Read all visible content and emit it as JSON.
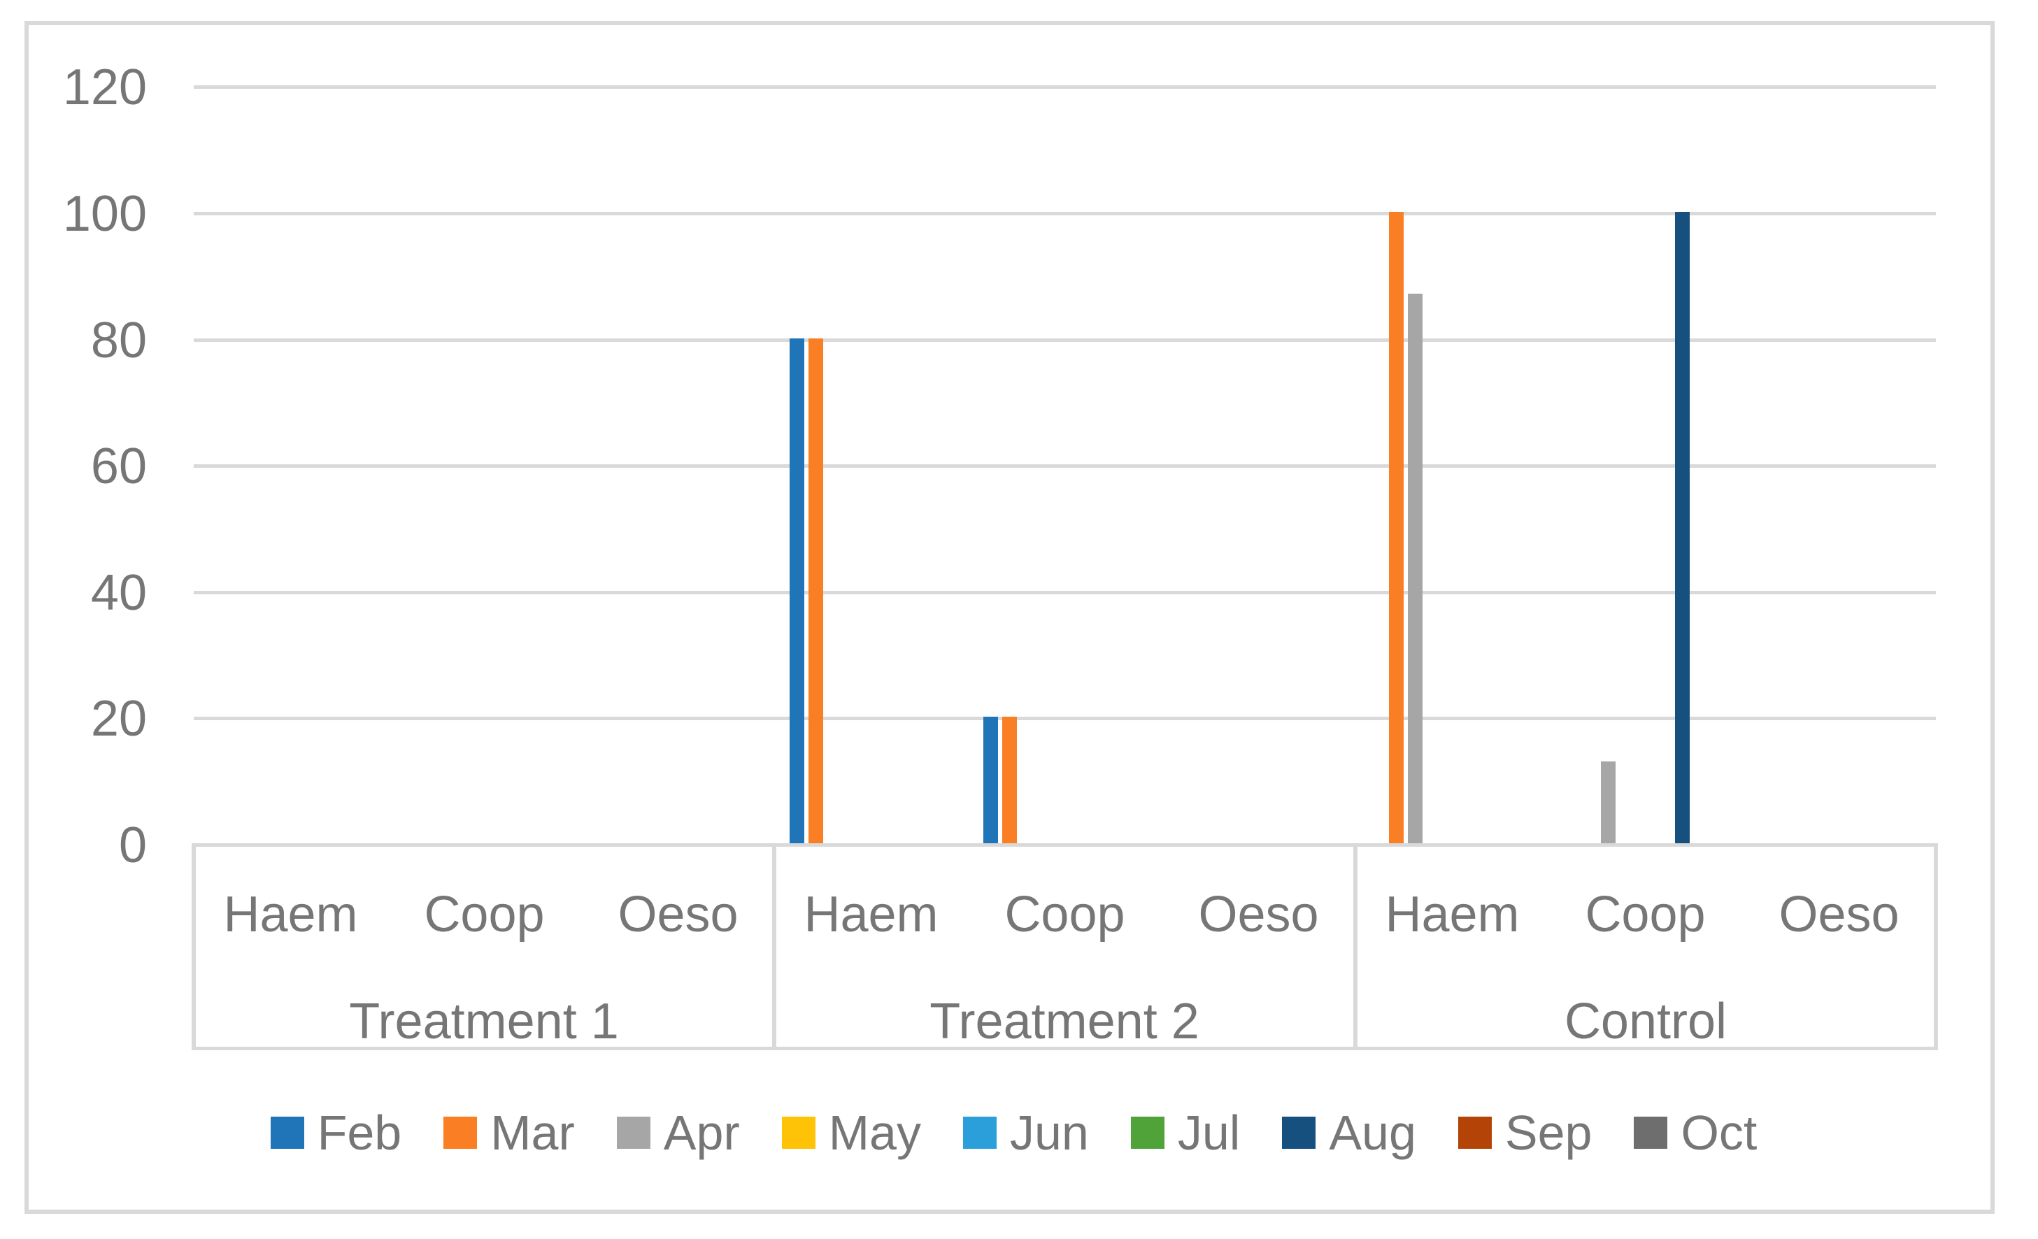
{
  "chart_data": {
    "type": "bar",
    "title": "",
    "xlabel": "",
    "ylabel": "",
    "groups": [
      "Treatment 1",
      "Treatment 2",
      "Control"
    ],
    "subcategories": [
      "Haem",
      "Coop",
      "Oeso"
    ],
    "slot_labels": [
      "Haem",
      "Coop",
      "Oeso",
      "Haem",
      "Coop",
      "Oeso",
      "Haem",
      "Coop",
      "Oeso"
    ],
    "series": [
      {
        "name": "Feb",
        "color": "#2074B8",
        "values": [
          0,
          0,
          0,
          80,
          20,
          0,
          0,
          0,
          0
        ]
      },
      {
        "name": "Mar",
        "color": "#FA7E23",
        "values": [
          0,
          0,
          0,
          80,
          20,
          0,
          100,
          0,
          0
        ]
      },
      {
        "name": "Apr",
        "color": "#A6A6A6",
        "values": [
          0,
          0,
          0,
          0,
          0,
          0,
          87,
          13,
          0
        ]
      },
      {
        "name": "May",
        "color": "#FEC306",
        "values": [
          0,
          0,
          0,
          0,
          0,
          0,
          0,
          0,
          0
        ]
      },
      {
        "name": "Jun",
        "color": "#2B9FD9",
        "values": [
          0,
          0,
          0,
          0,
          0,
          0,
          0,
          0,
          0
        ]
      },
      {
        "name": "Jul",
        "color": "#4FA339",
        "values": [
          0,
          0,
          0,
          0,
          0,
          0,
          0,
          0,
          0
        ]
      },
      {
        "name": "Aug",
        "color": "#16507E",
        "values": [
          0,
          0,
          0,
          0,
          0,
          0,
          0,
          100,
          0
        ]
      },
      {
        "name": "Sep",
        "color": "#B34307",
        "values": [
          0,
          0,
          0,
          0,
          0,
          0,
          0,
          0,
          0
        ]
      },
      {
        "name": "Oct",
        "color": "#6E6E6E",
        "values": [
          0,
          0,
          0,
          0,
          0,
          0,
          0,
          0,
          0
        ]
      }
    ],
    "yticks": [
      0,
      20,
      40,
      60,
      80,
      100,
      120
    ],
    "ylim": [
      0,
      120
    ],
    "grid": true,
    "legend_position": "bottom",
    "colors": {
      "gridline": "#D9D9D9",
      "axis_text": "#767676",
      "chart_border": "#D9D9D9"
    }
  }
}
